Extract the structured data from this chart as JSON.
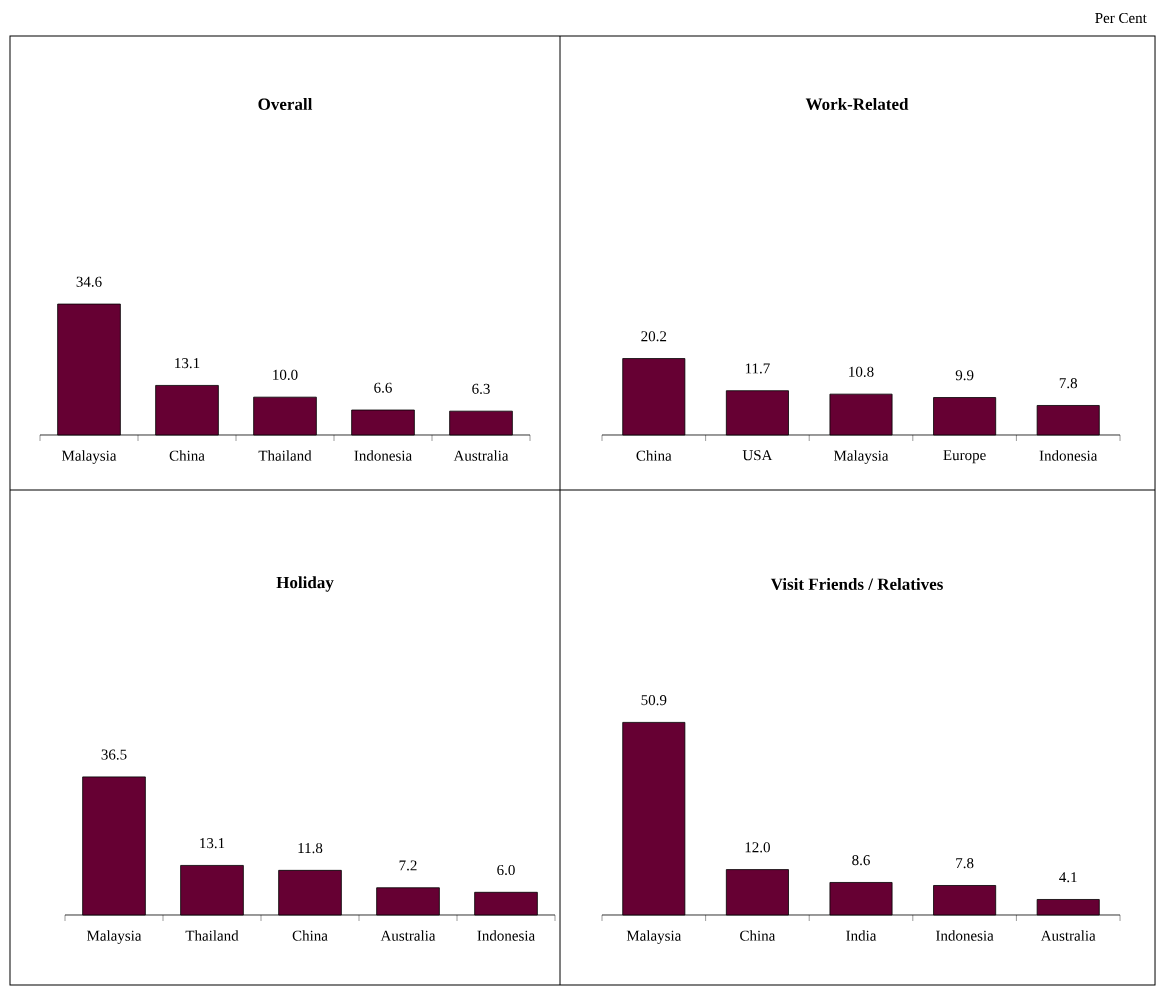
{
  "chart_data": [
    {
      "type": "bar",
      "title": "Overall",
      "categories": [
        "Malaysia",
        "China",
        "Thailand",
        "Indonesia",
        "Australia"
      ],
      "values": [
        34.6,
        13.1,
        10.0,
        6.6,
        6.3
      ],
      "value_labels": [
        "34.6",
        "13.1",
        "10.0",
        "6.6",
        "6.3"
      ],
      "color": "#660033"
    },
    {
      "type": "bar",
      "title": "Work-Related",
      "categories": [
        "China",
        "USA",
        "Malaysia",
        "Europe",
        "Indonesia"
      ],
      "values": [
        20.2,
        11.7,
        10.8,
        9.9,
        7.8
      ],
      "value_labels": [
        "20.2",
        "11.7",
        "10.8",
        "9.9",
        "7.8"
      ],
      "color": "#660033",
      "annotations": [
        "Per Cent"
      ]
    },
    {
      "type": "bar",
      "title": "Holiday",
      "categories": [
        "Malaysia",
        "Thailand",
        "China",
        "Australia",
        "Indonesia"
      ],
      "values": [
        36.5,
        13.1,
        11.8,
        7.2,
        6.0
      ],
      "value_labels": [
        "36.5",
        "13.1",
        "11.8",
        "7.2",
        "6.0"
      ],
      "color": "#660033"
    },
    {
      "type": "bar",
      "title": "Visit Friends / Relatives",
      "categories": [
        "Malaysia",
        "China",
        "India",
        "Indonesia",
        "Australia"
      ],
      "values": [
        50.9,
        12.0,
        8.6,
        7.8,
        4.1
      ],
      "value_labels": [
        "50.9",
        "12.0",
        "8.6",
        "7.8",
        "4.1"
      ],
      "color": "#660033"
    }
  ]
}
